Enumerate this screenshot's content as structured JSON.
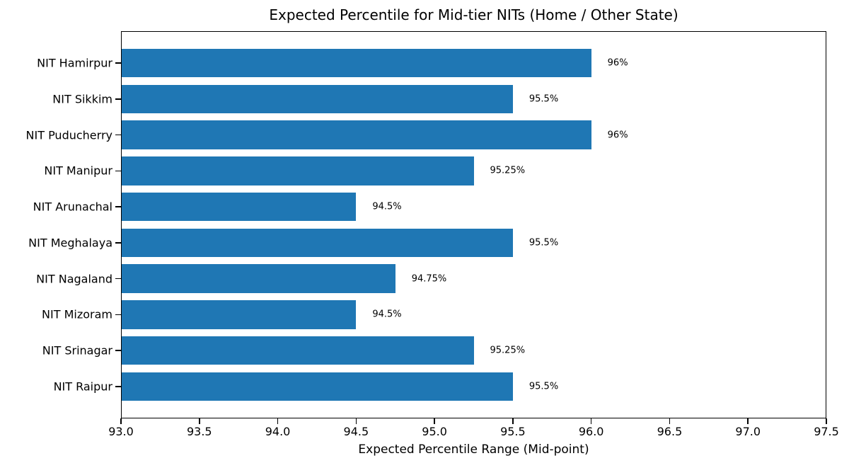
{
  "figure": {
    "background": "#ffffff",
    "text_color": "#000000",
    "spine_color": "#000000"
  },
  "chart_data": {
    "type": "bar",
    "orientation": "horizontal",
    "title": "Expected Percentile for Mid-tier NITs (Home / Other State)",
    "xlabel": "Expected Percentile Range (Mid-point)",
    "ylabel": "",
    "categories": [
      "NIT Hamirpur",
      "NIT Sikkim",
      "NIT Puducherry",
      "NIT Manipur",
      "NIT Arunachal",
      "NIT Meghalaya",
      "NIT Nagaland",
      "NIT Mizoram",
      "NIT Srinagar",
      "NIT Raipur"
    ],
    "values": [
      96.0,
      95.5,
      96.0,
      95.25,
      94.5,
      95.5,
      94.75,
      94.5,
      95.25,
      95.5
    ],
    "value_labels": [
      "96%",
      "95.5%",
      "96%",
      "95.25%",
      "94.5%",
      "95.5%",
      "94.75%",
      "94.5%",
      "95.25%",
      "95.5%"
    ],
    "xlim": [
      93.0,
      97.5
    ],
    "xticks": [
      93.0,
      93.5,
      94.0,
      94.5,
      95.0,
      95.5,
      96.0,
      96.5,
      97.0,
      97.5
    ],
    "xtick_labels": [
      "93.0",
      "93.5",
      "94.0",
      "94.5",
      "95.0",
      "95.5",
      "96.0",
      "96.5",
      "97.0",
      "97.5"
    ],
    "bar_color": "#1f77b4",
    "bar_height_fraction": 0.8,
    "grid": false,
    "legend": null
  }
}
